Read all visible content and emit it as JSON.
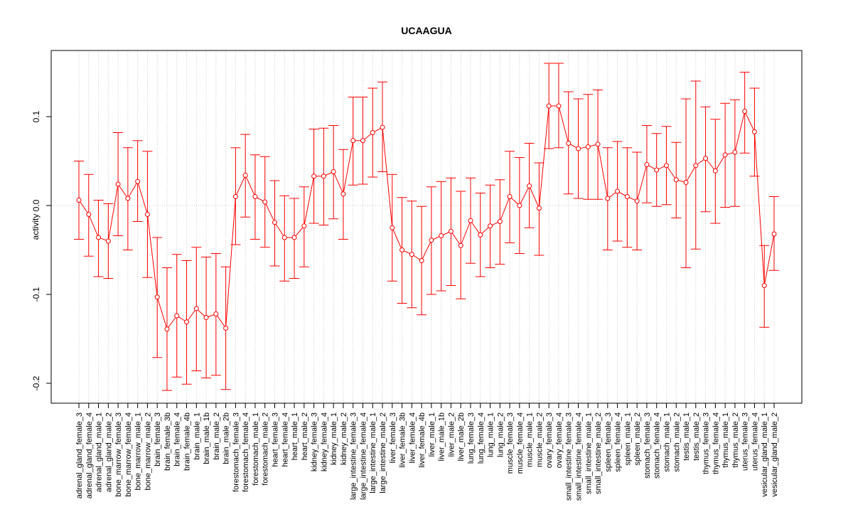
{
  "chart_data": {
    "type": "line",
    "title": "UCAAGUA",
    "xlabel": "",
    "ylabel": "activity",
    "ylim": [
      -0.22,
      0.177
    ],
    "yticks": [
      -0.2,
      -0.1,
      0.0,
      0.1
    ],
    "ytick_labels": [
      "-0.2",
      "-0.1",
      "0.0",
      "0.1"
    ],
    "grid": "dotted vertical per category, dotted horizontal at 0",
    "color": "#ff0000",
    "categories": [
      "adrenal_gland_female_3",
      "adrenal_gland_female_4",
      "adrenal_gland_male_1",
      "adrenal_gland_male_2",
      "bone_marrow_female_3",
      "bone_marrow_female_4",
      "bone_marrow_male_1",
      "bone_marrow_male_2",
      "brain_female_3",
      "brain_female_3b",
      "brain_female_4",
      "brain_female_4b",
      "brain_male_1",
      "brain_male_1b",
      "brain_male_2",
      "brain_male_2b",
      "forestomach_female_3",
      "forestomach_female_4",
      "forestomach_male_1",
      "forestomach_male_2",
      "heart_female_3",
      "heart_female_4",
      "heart_male_1",
      "heart_male_2",
      "kidney_female_3",
      "kidney_female_4",
      "kidney_male_1",
      "kidney_male_2",
      "large_intestine_female_3",
      "large_intestine_female_4",
      "large_intestine_male_1",
      "large_intestine_male_2",
      "liver_female_3",
      "liver_female_3b",
      "liver_female_4",
      "liver_female_4b",
      "liver_male_1",
      "liver_male_1b",
      "liver_male_2",
      "liver_male_2b",
      "lung_female_3",
      "lung_female_4",
      "lung_male_1",
      "lung_male_2",
      "muscle_female_3",
      "muscle_female_4",
      "muscle_male_1",
      "muscle_male_2",
      "ovary_female_3",
      "ovary_female_4",
      "small_intestine_female_3",
      "small_intestine_female_4",
      "small_intestine_male_1",
      "small_intestine_male_2",
      "spleen_female_3",
      "spleen_female_4",
      "spleen_male_1",
      "spleen_male_2",
      "stomach_female_3",
      "stomach_female_4",
      "stomach_male_1",
      "stomach_male_2",
      "testis_male_1",
      "testis_male_2",
      "thymus_female_3",
      "thymus_female_4",
      "thymus_male_1",
      "thymus_male_2",
      "uterus_female_3",
      "uterus_female_4",
      "vesicular_gland_male_1",
      "vesicular_gland_male_2"
    ],
    "values": [
      0.006,
      -0.01,
      -0.036,
      -0.04,
      0.024,
      0.008,
      0.027,
      -0.01,
      -0.103,
      -0.139,
      -0.124,
      -0.131,
      -0.116,
      -0.126,
      -0.122,
      -0.138,
      0.01,
      0.034,
      0.01,
      0.004,
      -0.019,
      -0.036,
      -0.036,
      -0.023,
      0.033,
      0.033,
      0.038,
      0.013,
      0.073,
      0.073,
      0.082,
      0.088,
      -0.025,
      -0.05,
      -0.055,
      -0.062,
      -0.039,
      -0.034,
      -0.029,
      -0.045,
      -0.017,
      -0.033,
      -0.023,
      -0.018,
      0.01,
      0.0,
      0.022,
      -0.003,
      0.112,
      0.112,
      0.07,
      0.064,
      0.066,
      0.069,
      0.008,
      0.016,
      0.01,
      0.005,
      0.046,
      0.04,
      0.045,
      0.029,
      0.026,
      0.045,
      0.053,
      0.039,
      0.057,
      0.06,
      0.106,
      0.083,
      -0.09,
      -0.032
    ],
    "upper": [
      0.05,
      0.035,
      0.006,
      0.002,
      0.082,
      0.065,
      0.073,
      0.061,
      -0.036,
      -0.07,
      -0.055,
      -0.062,
      -0.047,
      -0.058,
      -0.054,
      -0.069,
      0.065,
      0.08,
      0.057,
      0.055,
      0.028,
      0.011,
      0.008,
      0.021,
      0.086,
      0.087,
      0.09,
      0.063,
      0.122,
      0.122,
      0.132,
      0.139,
      0.035,
      0.009,
      0.005,
      -0.001,
      0.021,
      0.027,
      0.031,
      0.016,
      0.031,
      0.014,
      0.023,
      0.029,
      0.061,
      0.054,
      0.07,
      0.048,
      0.16,
      0.16,
      0.128,
      0.12,
      0.125,
      0.13,
      0.065,
      0.072,
      0.065,
      0.06,
      0.09,
      0.081,
      0.089,
      0.071,
      0.12,
      0.14,
      0.111,
      0.097,
      0.115,
      0.119,
      0.15,
      0.132,
      -0.045,
      0.01
    ],
    "lower": [
      -0.038,
      -0.057,
      -0.08,
      -0.082,
      -0.034,
      -0.05,
      -0.018,
      -0.081,
      -0.171,
      -0.208,
      -0.193,
      -0.201,
      -0.186,
      -0.194,
      -0.191,
      -0.207,
      -0.044,
      -0.013,
      -0.038,
      -0.047,
      -0.068,
      -0.085,
      -0.082,
      -0.069,
      -0.02,
      -0.022,
      -0.015,
      -0.038,
      0.023,
      0.024,
      0.032,
      0.038,
      -0.085,
      -0.11,
      -0.115,
      -0.123,
      -0.1,
      -0.096,
      -0.09,
      -0.105,
      -0.065,
      -0.08,
      -0.07,
      -0.066,
      -0.042,
      -0.054,
      -0.025,
      -0.056,
      0.064,
      0.065,
      0.013,
      0.008,
      0.007,
      0.007,
      -0.05,
      -0.04,
      -0.047,
      -0.05,
      0.003,
      -0.001,
      0.001,
      -0.014,
      -0.07,
      -0.049,
      -0.007,
      -0.02,
      -0.002,
      -0.001,
      0.059,
      0.033,
      -0.137,
      -0.073
    ]
  }
}
